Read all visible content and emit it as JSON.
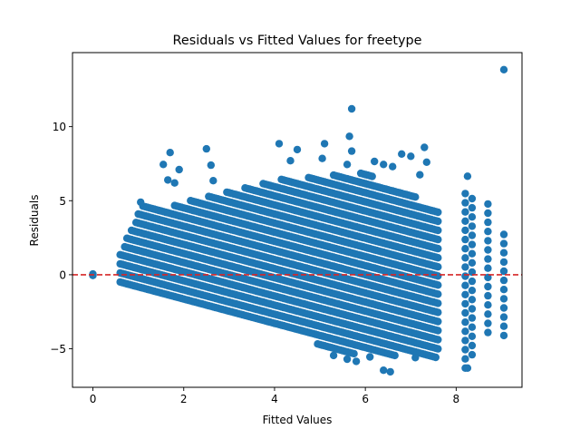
{
  "chart_data": {
    "type": "scatter",
    "title": "Residuals vs Fitted Values for freetype",
    "xlabel": "Fitted Values",
    "ylabel": "Residuals",
    "xlim": [
      -0.45,
      9.45
    ],
    "ylim": [
      -7.6,
      15.0
    ],
    "xticks": [
      0,
      2,
      4,
      6,
      8
    ],
    "yticks": [
      -5,
      0,
      5,
      10
    ],
    "grid": false,
    "legend": "none",
    "marker_color": "#1f77b4",
    "reference_line": {
      "y": 0,
      "color": "#d62728",
      "style": "dashed"
    },
    "series": [
      {
        "description": "Integer-valued response produces diagonal bands of residuals (slope approx -0.82) across fitted values 0.6 to 7.6; discrete columns at higher fitted values.",
        "band_slope": -0.82,
        "band_spacing": 0.615,
        "band_x_range": [
          0.6,
          7.6
        ],
        "band_top_envelope": [
          [
            0.6,
            1.4
          ],
          [
            1.1,
            5.0
          ],
          [
            1.6,
            4.6
          ],
          [
            4.0,
            6.4
          ],
          [
            6.0,
            6.9
          ],
          [
            7.6,
            4.5
          ]
        ],
        "band_bottom_envelope": [
          [
            0.6,
            -0.6
          ],
          [
            2.0,
            -1.8
          ],
          [
            4.0,
            -3.6
          ],
          [
            5.5,
            -5.3
          ],
          [
            7.6,
            -5.6
          ]
        ],
        "columns": [
          {
            "x": 8.2,
            "y_range": [
              -6.3,
              5.8
            ]
          },
          {
            "x": 8.35,
            "y_range": [
              -5.4,
              5.6
            ]
          },
          {
            "x": 8.7,
            "y_range": [
              -3.9,
              5.3
            ]
          },
          {
            "x": 9.05,
            "y_range": [
              -4.1,
              2.9
            ]
          }
        ],
        "points": [
          [
            0.0,
            0.0
          ],
          [
            0.0,
            -0.05
          ],
          [
            0.0,
            0.05
          ],
          [
            1.05,
            4.9
          ],
          [
            1.55,
            7.45
          ],
          [
            1.65,
            6.4
          ],
          [
            1.7,
            8.25
          ],
          [
            1.8,
            6.2
          ],
          [
            1.9,
            7.1
          ],
          [
            2.5,
            8.5
          ],
          [
            2.6,
            7.4
          ],
          [
            2.65,
            6.35
          ],
          [
            4.1,
            8.85
          ],
          [
            4.5,
            8.45
          ],
          [
            4.35,
            7.7
          ],
          [
            5.05,
            7.85
          ],
          [
            5.1,
            8.85
          ],
          [
            5.6,
            7.45
          ],
          [
            5.65,
            9.35
          ],
          [
            5.7,
            8.35
          ],
          [
            5.7,
            11.2
          ],
          [
            6.2,
            7.65
          ],
          [
            6.4,
            7.45
          ],
          [
            6.6,
            7.3
          ],
          [
            6.8,
            8.15
          ],
          [
            7.0,
            8.0
          ],
          [
            7.3,
            8.6
          ],
          [
            7.35,
            7.6
          ],
          [
            7.2,
            6.75
          ],
          [
            8.25,
            6.65
          ],
          [
            9.05,
            13.85
          ],
          [
            5.3,
            -5.45
          ],
          [
            5.6,
            -5.7
          ],
          [
            5.8,
            -5.85
          ],
          [
            6.4,
            -6.45
          ],
          [
            6.55,
            -6.55
          ],
          [
            8.25,
            -6.3
          ],
          [
            6.1,
            -5.55
          ],
          [
            7.1,
            -5.6
          ]
        ]
      }
    ]
  }
}
